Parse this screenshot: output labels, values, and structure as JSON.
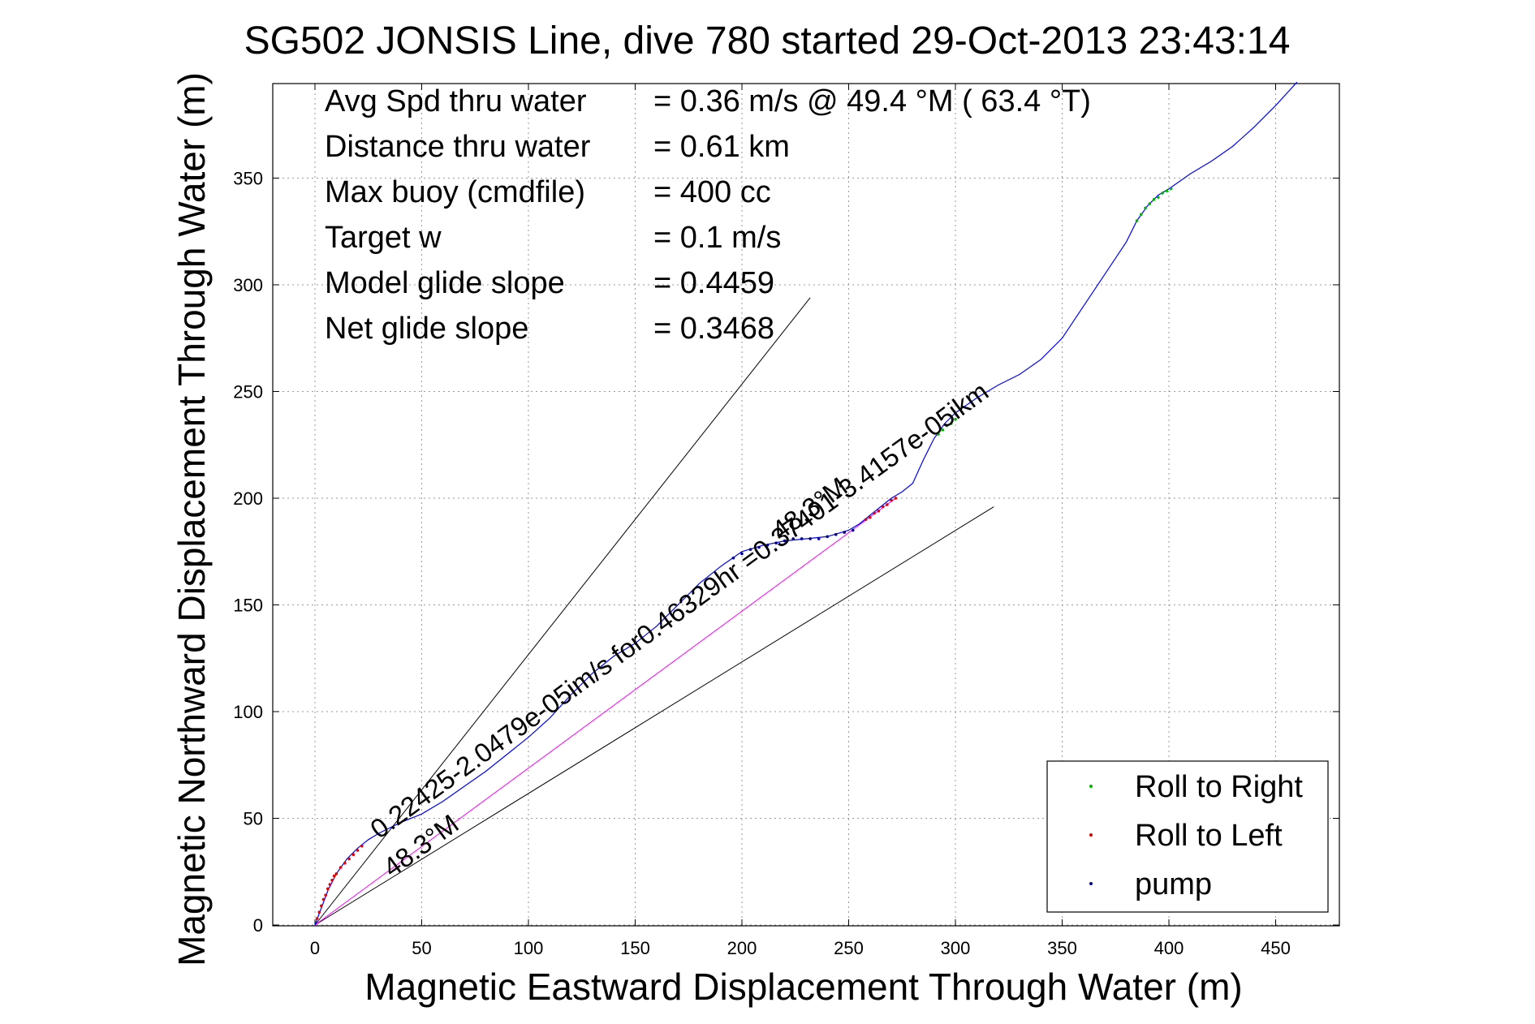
{
  "chart_data": {
    "type": "scatter",
    "title": "SG502 JONSIS Line, dive 780 started 29-Oct-2013 23:43:14",
    "xlabel": "Magnetic Eastward Displacement Through Water (m)",
    "ylabel": "Magnetic Northward Displacement Through Water (m)",
    "xlim": [
      -20,
      480
    ],
    "ylim": [
      0,
      395
    ],
    "xticks": [
      0,
      50,
      100,
      150,
      200,
      250,
      300,
      350,
      400,
      450
    ],
    "yticks": [
      0,
      50,
      100,
      150,
      200,
      250,
      300,
      350
    ],
    "grid": true,
    "stats": [
      {
        "label": "Avg Spd thru water",
        "value": "=  0.36 m/s @  49.4 °M ( 63.4 °T)"
      },
      {
        "label": "Distance thru water",
        "value": "=  0.61 km"
      },
      {
        "label": "Max buoy (cmdfile)",
        "value": "= 400 cc"
      },
      {
        "label": "Target w",
        "value": "= 0.1 m/s"
      },
      {
        "label": "Model glide slope",
        "value": "= 0.4459"
      },
      {
        "label": "Net glide slope",
        "value": "= 0.3468"
      }
    ],
    "series": [
      {
        "color": "#0000ff",
        "x": [
          0,
          3,
          6,
          10,
          15,
          20,
          25,
          30,
          40,
          50,
          60,
          70,
          80,
          90,
          100,
          110,
          120,
          130,
          140,
          150,
          160,
          170,
          180,
          190,
          200,
          210,
          220,
          230,
          240,
          250,
          255,
          260,
          265,
          270,
          275,
          280,
          285,
          290,
          295,
          300,
          310,
          320,
          330,
          340,
          350,
          360,
          370,
          380,
          385,
          390,
          395,
          400,
          410,
          420,
          430,
          440,
          450,
          460
        ],
        "y": [
          0,
          8,
          16,
          24,
          31,
          36,
          40,
          43,
          48,
          52,
          58,
          65,
          72,
          80,
          88,
          97,
          108,
          118,
          126,
          132,
          140,
          150,
          160,
          168,
          175,
          178,
          180,
          181,
          182,
          185,
          188,
          192,
          196,
          200,
          203,
          207,
          218,
          228,
          235,
          240,
          247,
          253,
          258,
          265,
          275,
          290,
          305,
          320,
          330,
          337,
          342,
          345,
          352,
          358,
          365,
          374,
          384,
          395
        ]
      },
      {
        "name": "Roll to Right",
        "color": "#00b400",
        "x": [
          292,
          294,
          296,
          298,
          300,
          385,
          387,
          389,
          391,
          393,
          395,
          397,
          399,
          401
        ],
        "y": [
          230,
          232,
          234,
          235,
          237,
          330,
          333,
          336,
          338,
          340,
          341,
          343,
          344,
          345
        ]
      },
      {
        "name": "Roll to Left",
        "color": "#e00000",
        "x": [
          1,
          2,
          3,
          4,
          5,
          6,
          7,
          8,
          9,
          10,
          12,
          14,
          16,
          18,
          20,
          22,
          258,
          260,
          262,
          264,
          266,
          268,
          270,
          272
        ],
        "y": [
          3,
          6,
          9,
          12,
          14,
          17,
          19,
          21,
          23,
          24,
          27,
          29,
          31,
          33,
          35,
          37,
          190,
          191,
          193,
          194,
          196,
          197,
          199,
          200
        ]
      },
      {
        "name": "pump",
        "color": "#00008b",
        "x": [
          196,
          200,
          204,
          208,
          212,
          216,
          220,
          224,
          228,
          232,
          236,
          240,
          244,
          248,
          252
        ],
        "y": [
          172,
          174,
          176,
          177,
          178,
          179,
          180,
          181,
          181,
          181,
          181,
          182,
          183,
          184,
          185
        ]
      }
    ],
    "reference_lines": [
      {
        "from": [
          0,
          0
        ],
        "to": [
          232,
          294
        ],
        "color": "#000000"
      },
      {
        "from": [
          0,
          0
        ],
        "to": [
          318,
          196
        ],
        "color": "#000000"
      },
      {
        "from": [
          0,
          0
        ],
        "to": [
          272,
          200
        ],
        "color": "#ff00ff"
      }
    ],
    "annotations": [
      {
        "text": "0.22425-2.0479e-05im/s for0.46329hr =0.37401-3.4157e-05ikm",
        "at": [
          30,
          40
        ],
        "angle_deg": -36
      },
      {
        "text": "48.3°M",
        "at": [
          36,
          22
        ],
        "angle_deg": -36
      },
      {
        "text": "48.3°M",
        "at": [
          218,
          180
        ],
        "angle_deg": -36
      }
    ],
    "legend": {
      "position": "bottom-right",
      "entries": [
        "Roll to Right",
        "Roll to Left",
        "pump"
      ]
    }
  }
}
